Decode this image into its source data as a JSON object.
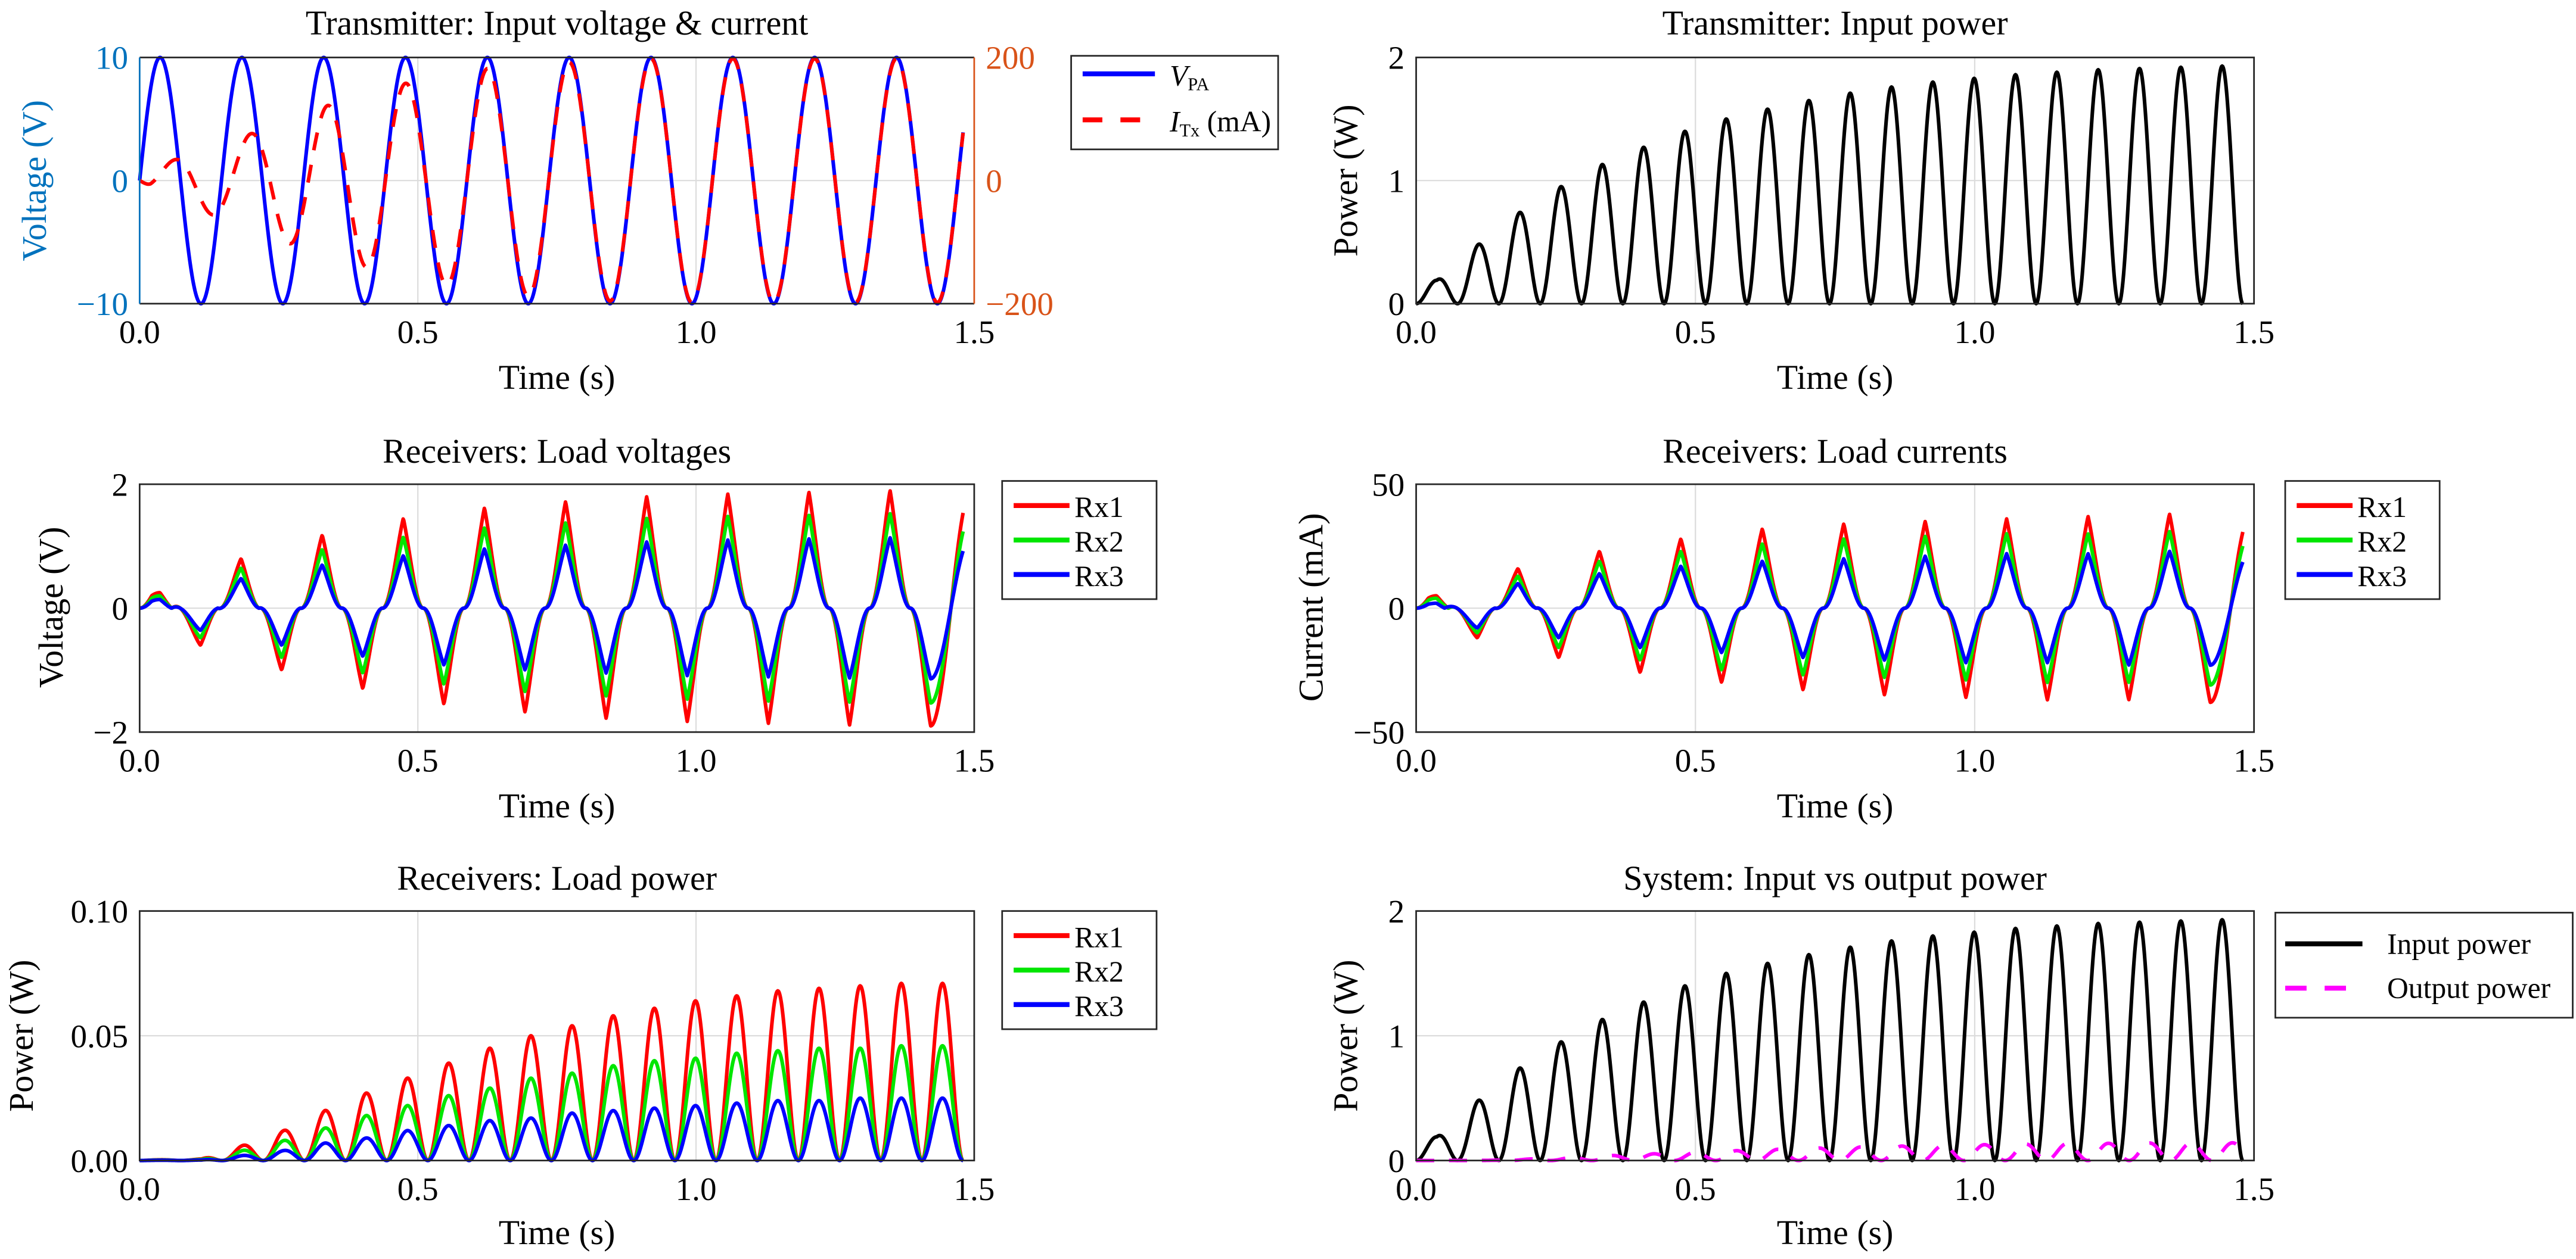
{
  "figure": {
    "panels_layout": "3 rows x 2 columns"
  },
  "chart_data": [
    {
      "id": "tx_vi",
      "type": "line",
      "title": "Transmitter: Input voltage & current",
      "xlabel": "Time (s)",
      "ylabel": "Voltage (V)",
      "ylabel_right": "",
      "xlim": [
        0,
        1.5
      ],
      "ylim": [
        -10,
        10
      ],
      "ylim_right": [
        -200,
        200
      ],
      "xticks": [
        "0.0",
        "0.5",
        "1.0",
        "1.5"
      ],
      "yticks": [
        "−10",
        "0",
        "10"
      ],
      "yticks_right": [
        "−200",
        "0",
        "200"
      ],
      "left_axis_color": "#0072BD",
      "right_axis_color": "#D95319",
      "grid": true,
      "legend": "outside-right-top",
      "frequency_hz": 6.8,
      "t_end": 1.48,
      "series": [
        {
          "name": "V_PA",
          "label_main": "V",
          "label_sub": "PA",
          "label_tail": "",
          "color": "#0000FF",
          "dash": false,
          "axis": "left",
          "kind": "sine",
          "amplitude_peaks": [
            10,
            10,
            10,
            10,
            10,
            10,
            10,
            10,
            10,
            10
          ],
          "phase": 0
        },
        {
          "name": "I_Tx (mA)",
          "label_main": "I",
          "label_sub": "Tx",
          "label_tail": " (mA)",
          "color": "#FF0000",
          "dash": true,
          "axis": "right",
          "kind": "growing-sine",
          "amplitude_peaks": [
            10,
            45,
            70,
            105,
            130,
            155,
            170,
            185,
            190,
            195,
            198
          ],
          "phase": -1.2,
          "settle": 0.45
        }
      ]
    },
    {
      "id": "tx_power",
      "type": "line",
      "title": "Transmitter: Input power",
      "xlabel": "Time (s)",
      "ylabel": "Power (W)",
      "xlim": [
        0,
        1.5
      ],
      "ylim": [
        0,
        2
      ],
      "xticks": [
        "0.0",
        "0.5",
        "1.0",
        "1.5"
      ],
      "yticks": [
        "0",
        "1",
        "2"
      ],
      "grid": true,
      "t_end": 1.48,
      "series": [
        {
          "name": "Input power",
          "color": "#000000",
          "dash": false,
          "kind": "rectified",
          "peaks": [
            0.19,
            0.48,
            0.74,
            0.95,
            1.13,
            1.27,
            1.4,
            1.5,
            1.58,
            1.65,
            1.71,
            1.76,
            1.8,
            1.83,
            1.86,
            1.88,
            1.9,
            1.91,
            1.92,
            1.93
          ]
        }
      ]
    },
    {
      "id": "rx_voltages",
      "type": "line",
      "title": "Receivers: Load voltages",
      "xlabel": "Time (s)",
      "ylabel": "Voltage (V)",
      "xlim": [
        0,
        1.5
      ],
      "ylim": [
        -2,
        2
      ],
      "xticks": [
        "0.0",
        "0.5",
        "1.0",
        "1.5"
      ],
      "yticks": [
        "−2",
        "0",
        "2"
      ],
      "grid": true,
      "legend": "outside-right-top",
      "frequency_hz": 6.8,
      "t_end": 1.48,
      "series": [
        {
          "name": "Rx1",
          "color": "#FF0000",
          "peaks": [
            0.25,
            -0.6,
            0.8,
            -1.0,
            1.18,
            -1.3,
            1.45,
            -1.55,
            1.62,
            -1.68,
            1.72,
            -1.78,
            1.8,
            -1.83,
            1.84,
            -1.86,
            1.87,
            -1.89,
            1.9,
            -1.9
          ]
        },
        {
          "name": "Rx2",
          "color": "#00E600",
          "peaks": [
            0.2,
            -0.48,
            0.65,
            -0.8,
            0.95,
            -1.05,
            1.15,
            -1.23,
            1.3,
            -1.35,
            1.38,
            -1.42,
            1.45,
            -1.47,
            1.48,
            -1.5,
            1.5,
            -1.52,
            1.53,
            -1.53
          ]
        },
        {
          "name": "Rx3",
          "color": "#0000FF",
          "peaks": [
            0.14,
            -0.36,
            0.48,
            -0.6,
            0.7,
            -0.78,
            0.85,
            -0.92,
            0.96,
            -1.0,
            1.02,
            -1.05,
            1.07,
            -1.09,
            1.1,
            -1.11,
            1.12,
            -1.13,
            1.14,
            -1.14
          ]
        }
      ]
    },
    {
      "id": "rx_currents",
      "type": "line",
      "title": "Receivers: Load currents",
      "xlabel": "Time (s)",
      "ylabel": "Current (mA)",
      "xlim": [
        0,
        1.5
      ],
      "ylim": [
        -50,
        50
      ],
      "xticks": [
        "0.0",
        "0.5",
        "1.0",
        "1.5"
      ],
      "yticks": [
        "−50",
        "0",
        "50"
      ],
      "grid": true,
      "legend": "outside-right-top",
      "frequency_hz": 6.8,
      "t_end": 1.48,
      "series": [
        {
          "name": "Rx1",
          "color": "#FF0000",
          "peaks": [
            5,
            -12,
            16,
            -20,
            23,
            -26,
            28,
            -30,
            32,
            -33,
            34,
            -35,
            35,
            -36,
            36,
            -37,
            37,
            -37,
            38,
            -38
          ]
        },
        {
          "name": "Rx2",
          "color": "#00E600",
          "peaks": [
            4,
            -10,
            13,
            -16,
            19,
            -21,
            23,
            -25,
            26,
            -27,
            28,
            -28,
            29,
            -29,
            30,
            -30,
            30,
            -30,
            31,
            -31
          ]
        },
        {
          "name": "Rx3",
          "color": "#0000FF",
          "peaks": [
            2,
            -8,
            10,
            -12,
            14,
            -16,
            17,
            -18,
            19,
            -20,
            20,
            -21,
            21,
            -22,
            22,
            -22,
            22,
            -23,
            23,
            -23
          ]
        }
      ]
    },
    {
      "id": "rx_power",
      "type": "line",
      "title": "Receivers: Load power",
      "xlabel": "Time (s)",
      "ylabel": "Power (W)",
      "xlim": [
        0,
        1.5
      ],
      "ylim": [
        0,
        0.1
      ],
      "xticks": [
        "0.0",
        "0.5",
        "1.0",
        "1.5"
      ],
      "yticks": [
        "0.00",
        "0.05",
        "0.10"
      ],
      "grid": true,
      "legend": "outside-right-top",
      "t_end": 1.48,
      "series": [
        {
          "name": "Rx1",
          "color": "#FF0000",
          "peaks": [
            0.0003,
            0.0006,
            0.006,
            0.012,
            0.02,
            0.027,
            0.033,
            0.039,
            0.045,
            0.05,
            0.054,
            0.058,
            0.061,
            0.064,
            0.066,
            0.068,
            0.069,
            0.07,
            0.071,
            0.071
          ]
        },
        {
          "name": "Rx2",
          "color": "#00E600",
          "peaks": [
            0.0002,
            0.0004,
            0.004,
            0.008,
            0.013,
            0.018,
            0.022,
            0.026,
            0.029,
            0.033,
            0.035,
            0.038,
            0.04,
            0.041,
            0.043,
            0.044,
            0.045,
            0.045,
            0.046,
            0.046
          ]
        },
        {
          "name": "Rx3",
          "color": "#0000FF",
          "peaks": [
            0.0001,
            0.0002,
            0.002,
            0.004,
            0.007,
            0.009,
            0.012,
            0.014,
            0.016,
            0.017,
            0.019,
            0.02,
            0.021,
            0.022,
            0.023,
            0.024,
            0.024,
            0.025,
            0.025,
            0.025
          ]
        }
      ]
    },
    {
      "id": "sys_power",
      "type": "line",
      "title": "System: Input vs output power",
      "xlabel": "Time (s)",
      "ylabel": "Power (W)",
      "xlim": [
        0,
        1.5
      ],
      "ylim": [
        0,
        2
      ],
      "xticks": [
        "0.0",
        "0.5",
        "1.0",
        "1.5"
      ],
      "yticks": [
        "0",
        "1",
        "2"
      ],
      "grid": true,
      "legend": "outside-right-top",
      "t_end": 1.48,
      "series": [
        {
          "name": "Input power",
          "color": "#000000",
          "dash": false,
          "kind": "rectified",
          "peaks": [
            0.19,
            0.48,
            0.74,
            0.95,
            1.13,
            1.27,
            1.4,
            1.5,
            1.58,
            1.65,
            1.71,
            1.76,
            1.8,
            1.83,
            1.86,
            1.88,
            1.9,
            1.91,
            1.92,
            1.93
          ]
        },
        {
          "name": "Output power",
          "color": "#FF00FF",
          "dash": true,
          "kind": "rectified",
          "phase_offset": 0.25,
          "peaks": [
            0.0006,
            0.0012,
            0.012,
            0.024,
            0.04,
            0.054,
            0.067,
            0.079,
            0.09,
            0.1,
            0.108,
            0.116,
            0.122,
            0.127,
            0.132,
            0.136,
            0.138,
            0.14,
            0.142,
            0.142
          ]
        }
      ]
    }
  ]
}
